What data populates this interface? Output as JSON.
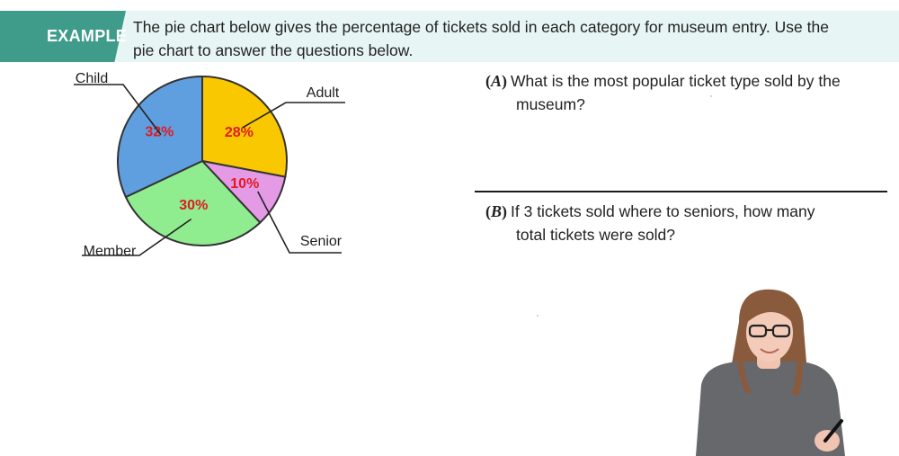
{
  "header": {
    "tag": "EXAMPLE",
    "instruction_line1": "The pie chart below gives the percentage of tickets sold in each category for museum entry.  Use the",
    "instruction_line2": "pie chart to answer the questions below."
  },
  "chart_data": {
    "type": "pie",
    "slices": [
      {
        "label": "Adult",
        "value": 28,
        "value_label": "28%",
        "color": "#f9c800"
      },
      {
        "label": "Senior",
        "value": 10,
        "value_label": "10%",
        "color": "#e59ae5"
      },
      {
        "label": "Member",
        "value": 30,
        "value_label": "30%",
        "color": "#8fec8f"
      },
      {
        "label": "Child",
        "value": 32,
        "value_label": "32%",
        "color": "#5f9fdf"
      }
    ],
    "value_label_color": "#e01b24",
    "start_angle_deg": 0,
    "direction": "clockwise"
  },
  "questions": [
    {
      "tag": "A",
      "line1": "What is the most popular ticket type sold by the",
      "line2": "museum?"
    },
    {
      "tag": "B",
      "line1": "If 3 tickets sold where to seniors, how many",
      "line2": "total tickets were sold?"
    }
  ],
  "colors": {
    "accent": "#3f9b8a",
    "header_band": "#e7f6f4",
    "pie_outline": "#333333"
  }
}
